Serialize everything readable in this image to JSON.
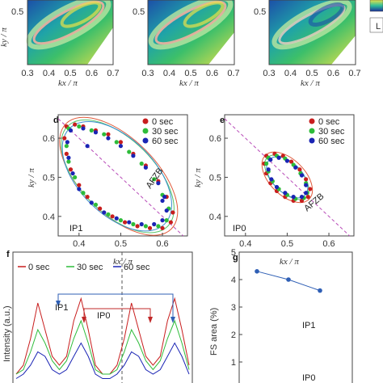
{
  "colors": {
    "red": "#c81e1e",
    "green": "#2ebc3a",
    "blue": "#1a24b4",
    "fit_red": "#e05a3a",
    "fit_green": "#58c46a",
    "fit_blue": "#3a8ed0",
    "afzb": "#b84bb8",
    "ip1": "#2f5fb5",
    "ip0": "#c02828"
  },
  "top_row": {
    "x_ticks": [
      "0.3",
      "0.4",
      "0.5",
      "0.6",
      "0.7"
    ],
    "xlabel": "kx / π",
    "ylabel": "ky / π",
    "y_ticks": [
      "0.5",
      "0.5",
      "0.5"
    ],
    "colorbar_label": "L"
  },
  "panel_d": {
    "label": "d",
    "legend": [
      "0 sec",
      "30 sec",
      "60 sec"
    ],
    "xlabel": "kx / π",
    "ylabel": "ky / π",
    "x_ticks": [
      "0.4",
      "0.5",
      "0.6"
    ],
    "y_ticks": [
      "0.6",
      "0.5",
      "0.4"
    ],
    "afzb_label": "AFZB",
    "ip_label": "IP1"
  },
  "panel_e": {
    "label": "e",
    "legend": [
      "0 sec",
      "30 sec",
      "60 sec"
    ],
    "xlabel": "kx / π",
    "ylabel": "ky / π",
    "x_ticks": [
      "0.4",
      "0.5",
      "0.6"
    ],
    "y_ticks": [
      "0.6",
      "0.5",
      "0.4"
    ],
    "afzb_label": "AFZB",
    "ip_label": "IP0"
  },
  "panel_f": {
    "label": "f",
    "legend": [
      "0 sec",
      "30 sec",
      "60 sec"
    ],
    "ylabel": "Intensity (a.u.)",
    "ip1_label": "IP1",
    "ip0_label": "IP0"
  },
  "panel_g": {
    "label": "g",
    "ylabel": "FS area (%)",
    "y_ticks": [
      "5",
      "4",
      "3",
      "2",
      "1"
    ],
    "ip1_label": "IP1",
    "ip0_label": "IP0"
  },
  "chart_data": [
    {
      "panel": "d",
      "type": "scatter",
      "xlabel": "kx / π",
      "ylabel": "ky / π",
      "xlim": [
        0.35,
        0.66
      ],
      "ylim": [
        0.35,
        0.66
      ],
      "series": [
        {
          "name": "0 sec",
          "points": [
            [
              0.37,
              0.63
            ],
            [
              0.39,
              0.635
            ],
            [
              0.41,
              0.63
            ],
            [
              0.44,
              0.62
            ],
            [
              0.47,
              0.61
            ],
            [
              0.5,
              0.59
            ],
            [
              0.53,
              0.56
            ],
            [
              0.56,
              0.53
            ],
            [
              0.59,
              0.49
            ],
            [
              0.61,
              0.45
            ],
            [
              0.625,
              0.41
            ],
            [
              0.62,
              0.385
            ],
            [
              0.6,
              0.37
            ],
            [
              0.57,
              0.37
            ],
            [
              0.54,
              0.375
            ],
            [
              0.51,
              0.385
            ],
            [
              0.48,
              0.4
            ],
            [
              0.45,
              0.42
            ],
            [
              0.42,
              0.45
            ],
            [
              0.4,
              0.48
            ],
            [
              0.38,
              0.52
            ],
            [
              0.37,
              0.56
            ],
            [
              0.365,
              0.6
            ]
          ]
        },
        {
          "name": "30 sec",
          "points": [
            [
              0.375,
              0.625
            ],
            [
              0.4,
              0.63
            ],
            [
              0.43,
              0.62
            ],
            [
              0.46,
              0.61
            ],
            [
              0.49,
              0.59
            ],
            [
              0.52,
              0.565
            ],
            [
              0.55,
              0.535
            ],
            [
              0.58,
              0.495
            ],
            [
              0.6,
              0.455
            ],
            [
              0.615,
              0.42
            ],
            [
              0.61,
              0.39
            ],
            [
              0.59,
              0.375
            ],
            [
              0.56,
              0.375
            ],
            [
              0.53,
              0.38
            ],
            [
              0.5,
              0.39
            ],
            [
              0.47,
              0.405
            ],
            [
              0.44,
              0.43
            ],
            [
              0.41,
              0.46
            ],
            [
              0.39,
              0.5
            ],
            [
              0.375,
              0.54
            ],
            [
              0.37,
              0.58
            ]
          ]
        },
        {
          "name": "60 sec",
          "points": [
            [
              0.38,
              0.62
            ],
            [
              0.41,
              0.625
            ],
            [
              0.44,
              0.615
            ],
            [
              0.47,
              0.6
            ],
            [
              0.5,
              0.58
            ],
            [
              0.53,
              0.555
            ],
            [
              0.56,
              0.525
            ],
            [
              0.59,
              0.485
            ],
            [
              0.605,
              0.45
            ],
            [
              0.61,
              0.415
            ],
            [
              0.6,
              0.39
            ],
            [
              0.58,
              0.38
            ],
            [
              0.55,
              0.38
            ],
            [
              0.52,
              0.385
            ],
            [
              0.49,
              0.395
            ],
            [
              0.46,
              0.41
            ],
            [
              0.43,
              0.435
            ],
            [
              0.4,
              0.47
            ],
            [
              0.385,
              0.51
            ],
            [
              0.375,
              0.55
            ],
            [
              0.372,
              0.59
            ],
            [
              0.42,
              0.58
            ],
            [
              0.6,
              0.44
            ]
          ]
        }
      ]
    },
    {
      "panel": "e",
      "type": "scatter",
      "xlabel": "kx / π",
      "ylabel": "ky / π",
      "xlim": [
        0.35,
        0.66
      ],
      "ylim": [
        0.35,
        0.66
      ],
      "series": [
        {
          "name": "0 sec",
          "points": [
            [
              0.45,
              0.555
            ],
            [
              0.47,
              0.56
            ],
            [
              0.49,
              0.555
            ],
            [
              0.51,
              0.54
            ],
            [
              0.53,
              0.52
            ],
            [
              0.545,
              0.495
            ],
            [
              0.555,
              0.47
            ],
            [
              0.55,
              0.45
            ],
            [
              0.535,
              0.44
            ],
            [
              0.515,
              0.44
            ],
            [
              0.495,
              0.45
            ],
            [
              0.475,
              0.465
            ],
            [
              0.46,
              0.485
            ],
            [
              0.45,
              0.51
            ],
            [
              0.445,
              0.535
            ]
          ]
        },
        {
          "name": "30 sec",
          "points": [
            [
              0.455,
              0.55
            ],
            [
              0.475,
              0.555
            ],
            [
              0.495,
              0.548
            ],
            [
              0.515,
              0.532
            ],
            [
              0.532,
              0.51
            ],
            [
              0.545,
              0.485
            ],
            [
              0.548,
              0.46
            ],
            [
              0.54,
              0.447
            ],
            [
              0.52,
              0.445
            ],
            [
              0.5,
              0.455
            ],
            [
              0.48,
              0.47
            ],
            [
              0.465,
              0.49
            ],
            [
              0.455,
              0.515
            ],
            [
              0.45,
              0.535
            ]
          ]
        },
        {
          "name": "60 sec",
          "points": [
            [
              0.46,
              0.545
            ],
            [
              0.48,
              0.55
            ],
            [
              0.5,
              0.542
            ],
            [
              0.52,
              0.525
            ],
            [
              0.535,
              0.505
            ],
            [
              0.545,
              0.48
            ],
            [
              0.545,
              0.46
            ],
            [
              0.535,
              0.45
            ],
            [
              0.515,
              0.45
            ],
            [
              0.495,
              0.46
            ],
            [
              0.475,
              0.475
            ],
            [
              0.462,
              0.495
            ],
            [
              0.455,
              0.52
            ]
          ]
        }
      ]
    },
    {
      "panel": "f",
      "type": "line",
      "ylabel": "Intensity (a.u.)",
      "series": [
        {
          "name": "0 sec",
          "values": [
            0.1,
            0.2,
            0.5,
            0.9,
            0.6,
            0.3,
            0.2,
            0.3,
            0.7,
            0.95,
            0.6,
            0.2,
            0.1,
            0.1,
            0.2,
            0.5,
            0.9,
            0.6,
            0.3,
            0.2,
            0.3,
            0.7,
            0.95,
            0.6,
            0.2
          ]
        },
        {
          "name": "30 sec",
          "values": [
            0.1,
            0.15,
            0.35,
            0.6,
            0.45,
            0.25,
            0.15,
            0.25,
            0.5,
            0.7,
            0.45,
            0.15,
            0.1,
            0.1,
            0.15,
            0.35,
            0.6,
            0.45,
            0.25,
            0.15,
            0.25,
            0.5,
            0.7,
            0.45,
            0.15
          ]
        },
        {
          "name": "60 sec",
          "values": [
            0.05,
            0.1,
            0.2,
            0.35,
            0.3,
            0.15,
            0.1,
            0.15,
            0.3,
            0.45,
            0.3,
            0.1,
            0.05,
            0.05,
            0.1,
            0.2,
            0.35,
            0.3,
            0.15,
            0.1,
            0.15,
            0.3,
            0.45,
            0.3,
            0.1
          ]
        }
      ]
    },
    {
      "panel": "g",
      "type": "line",
      "ylabel": "FS area (%)",
      "ylim": [
        0,
        5
      ],
      "series": [
        {
          "name": "IP1",
          "values": [
            4.3,
            4.0,
            3.6
          ]
        }
      ]
    }
  ]
}
